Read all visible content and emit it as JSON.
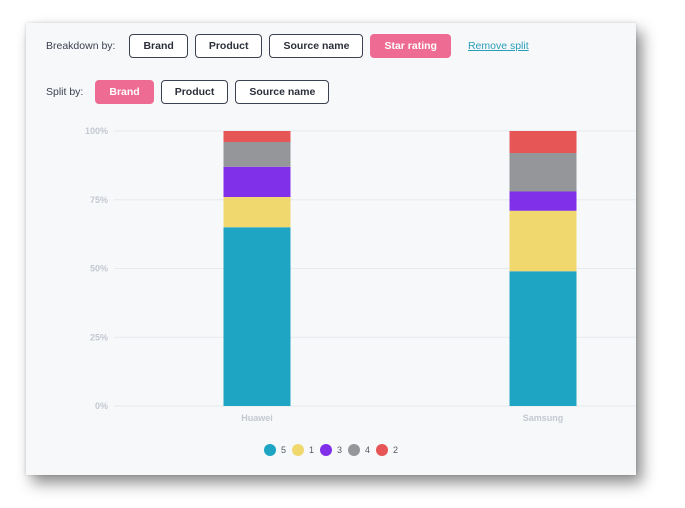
{
  "breakdown": {
    "label": "Breakdown by:",
    "options": [
      "Brand",
      "Product",
      "Source name",
      "Star rating"
    ],
    "active_index": 3,
    "remove_link": "Remove split"
  },
  "split": {
    "label": "Split by:",
    "options": [
      "Brand",
      "Product",
      "Source name"
    ],
    "active_index": 0
  },
  "chart_data": {
    "type": "bar",
    "stacked": true,
    "normalized": true,
    "categories": [
      "Huawei",
      "Samsung"
    ],
    "series": [
      {
        "name": "5",
        "color": "#1ea5c4",
        "values": [
          65,
          49
        ]
      },
      {
        "name": "1",
        "color": "#f0d86f",
        "values": [
          11,
          22
        ]
      },
      {
        "name": "3",
        "color": "#8130ea",
        "values": [
          11,
          7
        ]
      },
      {
        "name": "4",
        "color": "#94969a",
        "values": [
          9,
          14
        ]
      },
      {
        "name": "2",
        "color": "#e65656",
        "values": [
          4,
          8
        ]
      }
    ],
    "yticks": [
      "0%",
      "25%",
      "50%",
      "75%",
      "100%"
    ],
    "ylim": [
      0,
      100
    ],
    "grid": true,
    "legend_position": "bottom-center"
  }
}
